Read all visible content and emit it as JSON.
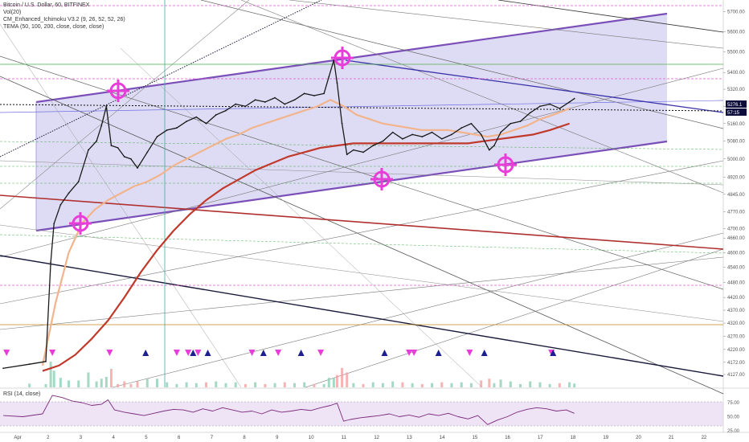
{
  "chart_data": [
    {
      "type": "line",
      "title": "Bitcoin / U.S. Dollar, 60, BITFINEX",
      "indicators": [
        "Vol(20)",
        "CM_Enhanced_Ichimoku V3.2 (9, 26, 52, 52, 26)",
        "TEMA (50, 100, 200, close, close, close)"
      ],
      "ylim": [
        4080,
        5760
      ],
      "y_scale": "log",
      "yticks": [
        5700,
        5600,
        5500,
        5400,
        5320,
        5240,
        5160,
        5080,
        5000,
        4920,
        4845,
        4770,
        4700,
        4660,
        4600,
        4540,
        4480,
        4420,
        4370,
        4320,
        4270,
        4220,
        4172,
        4127
      ],
      "x_ticks": [
        "Apr",
        "2",
        "3",
        "4",
        "5",
        "6",
        "7",
        "8",
        "9",
        "10",
        "11",
        "12",
        "13",
        "14",
        "15",
        "16",
        "17",
        "18",
        "19",
        "20",
        "21",
        "22"
      ],
      "x_range": [
        0.5,
        22.6
      ],
      "last_price": "5276.1",
      "countdown": "57:15",
      "series": [
        {
          "name": "BTCUSD close",
          "color": "#1a1a1a",
          "x": [
            0.6,
            1.4,
            1.9,
            2.05,
            2.15,
            2.35,
            2.6,
            2.9,
            3.2,
            3.45,
            3.6,
            3.75,
            3.9,
            4.1,
            4.3,
            4.5,
            4.7,
            5.0,
            5.3,
            5.6,
            5.9,
            6.2,
            6.5,
            6.8,
            7.1,
            7.4,
            7.7,
            8.0,
            8.3,
            8.6,
            8.9,
            9.2,
            9.5,
            9.8,
            10.1,
            10.4,
            10.55,
            10.7,
            10.8,
            10.95,
            11.1,
            11.3,
            11.6,
            11.9,
            12.2,
            12.5,
            12.8,
            13.1,
            13.4,
            13.7,
            14.0,
            14.3,
            14.6,
            14.9,
            15.2,
            15.45,
            15.6,
            15.8,
            16.1,
            16.4,
            16.7,
            17.0,
            17.3,
            17.6,
            17.9,
            18.05
          ],
          "y": [
            4150,
            4165,
            4175,
            4560,
            4720,
            4800,
            4850,
            4900,
            5040,
            5080,
            5150,
            5240,
            5060,
            5050,
            5010,
            5000,
            4960,
            5030,
            5100,
            5130,
            5140,
            5170,
            5190,
            5160,
            5200,
            5220,
            5250,
            5240,
            5270,
            5260,
            5280,
            5250,
            5270,
            5300,
            5290,
            5300,
            5380,
            5460,
            5350,
            5160,
            5020,
            5040,
            5030,
            5060,
            5080,
            5120,
            5090,
            5110,
            5100,
            5120,
            5090,
            5110,
            5140,
            5160,
            5110,
            5040,
            5060,
            5120,
            5160,
            5170,
            5210,
            5240,
            5250,
            5230,
            5260,
            5276
          ]
        },
        {
          "name": "TEMA 50",
          "color": "#f2b48c",
          "x": [
            1.8,
            2.2,
            2.6,
            3.0,
            3.4,
            3.8,
            4.2,
            4.6,
            5.0,
            5.4,
            5.8,
            6.2,
            6.6,
            7.0,
            7.4,
            7.8,
            8.2,
            8.6,
            9.0,
            9.4,
            9.8,
            10.2,
            10.6,
            11.0,
            11.4,
            11.8,
            12.2,
            12.6,
            13.0,
            13.4,
            13.8,
            14.2,
            14.6,
            15.0,
            15.4,
            15.8,
            16.2,
            16.6,
            17.0,
            17.4,
            17.9
          ],
          "y": [
            4160,
            4400,
            4600,
            4720,
            4780,
            4820,
            4850,
            4880,
            4900,
            4930,
            4970,
            5000,
            5030,
            5060,
            5090,
            5110,
            5140,
            5160,
            5180,
            5200,
            5220,
            5240,
            5270,
            5240,
            5200,
            5180,
            5160,
            5150,
            5140,
            5130,
            5130,
            5130,
            5120,
            5110,
            5100,
            5110,
            5130,
            5150,
            5180,
            5200,
            5230
          ]
        },
        {
          "name": "TEMA 100",
          "color": "#c0392b",
          "x": [
            1.8,
            2.3,
            2.8,
            3.3,
            3.8,
            4.3,
            4.8,
            5.3,
            5.8,
            6.3,
            6.8,
            7.3,
            7.8,
            8.3,
            8.8,
            9.3,
            9.8,
            10.3,
            10.8,
            11.3,
            11.8,
            12.3,
            12.8,
            13.3,
            13.8,
            14.3,
            14.8,
            15.3,
            15.8,
            16.3,
            16.8,
            17.3,
            17.9
          ],
          "y": [
            4140,
            4160,
            4200,
            4260,
            4330,
            4420,
            4520,
            4610,
            4690,
            4760,
            4820,
            4870,
            4910,
            4950,
            4980,
            5010,
            5030,
            5050,
            5060,
            5070,
            5070,
            5070,
            5070,
            5070,
            5070,
            5070,
            5070,
            5080,
            5090,
            5100,
            5110,
            5130,
            5160
          ]
        }
      ],
      "markers": {
        "sell_x": [
          0.7,
          2.1,
          3.85,
          5.9,
          6.25,
          6.55,
          8.2,
          9.0,
          10.3,
          13.0,
          13.15,
          14.85,
          17.35
        ],
        "buy_x": [
          4.95,
          6.4,
          6.85,
          8.55,
          9.7,
          12.25,
          13.9,
          15.3,
          17.4
        ]
      },
      "rsi": {
        "title": "RSI (14, close)",
        "ylim": [
          25,
          95
        ],
        "yticks": [
          75.0,
          50.0,
          25.0
        ],
        "x": [
          0.6,
          1.2,
          1.8,
          2.1,
          2.4,
          2.7,
          3.0,
          3.3,
          3.6,
          3.8,
          4.0,
          4.3,
          4.6,
          4.9,
          5.2,
          5.5,
          5.8,
          6.1,
          6.4,
          6.7,
          7.0,
          7.3,
          7.6,
          7.9,
          8.2,
          8.5,
          8.8,
          9.1,
          9.4,
          9.7,
          10.0,
          10.3,
          10.6,
          10.8,
          11.0,
          11.2,
          11.5,
          11.8,
          12.1,
          12.4,
          12.7,
          13.0,
          13.3,
          13.6,
          13.9,
          14.2,
          14.5,
          14.8,
          15.1,
          15.4,
          15.7,
          16.0,
          16.3,
          16.6,
          16.9,
          17.2,
          17.5,
          17.8,
          18.05
        ],
        "y": [
          52,
          50,
          55,
          88,
          84,
          78,
          75,
          70,
          72,
          80,
          62,
          58,
          55,
          52,
          56,
          60,
          63,
          62,
          58,
          64,
          60,
          66,
          62,
          58,
          60,
          55,
          62,
          58,
          60,
          63,
          61,
          66,
          70,
          74,
          42,
          45,
          48,
          50,
          52,
          55,
          50,
          53,
          49,
          55,
          52,
          56,
          50,
          46,
          52,
          36,
          44,
          50,
          58,
          63,
          66,
          64,
          60,
          62,
          56
        ]
      }
    }
  ]
}
